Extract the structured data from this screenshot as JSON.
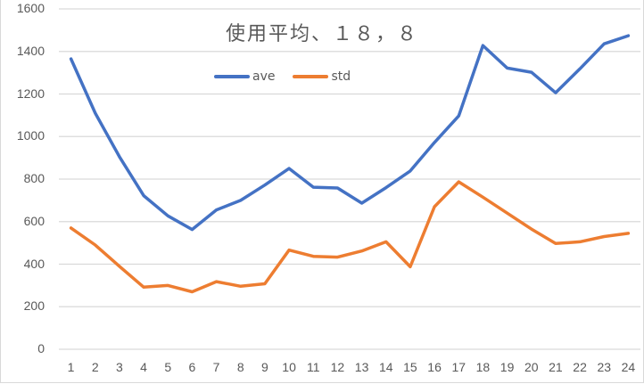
{
  "chart_data": {
    "type": "line",
    "title": "使用平均、１８，８",
    "xlabel": "",
    "ylabel": "",
    "categories": [
      "1",
      "2",
      "3",
      "4",
      "5",
      "6",
      "7",
      "8",
      "9",
      "10",
      "11",
      "12",
      "13",
      "14",
      "15",
      "16",
      "17",
      "18",
      "19",
      "20",
      "21",
      "22",
      "23",
      "24"
    ],
    "series": [
      {
        "name": "ave",
        "color": "#4472C4",
        "values": [
          1365,
          1110,
          905,
          722,
          627,
          563,
          655,
          700,
          772,
          850,
          762,
          758,
          687,
          760,
          838,
          972,
          1097,
          1428,
          1322,
          1302,
          1206,
          1318,
          1436,
          1474
        ]
      },
      {
        "name": "std",
        "color": "#ED7D31",
        "values": [
          570,
          490,
          390,
          292,
          300,
          270,
          318,
          296,
          308,
          466,
          437,
          433,
          462,
          505,
          388,
          670,
          787,
          715,
          640,
          565,
          497,
          505,
          530,
          545
        ]
      }
    ],
    "ylim": [
      0,
      1600
    ],
    "yticks": [
      "0",
      "200",
      "400",
      "600",
      "800",
      "1000",
      "1200",
      "1400",
      "1600"
    ],
    "grid": true,
    "legend_position": "top"
  },
  "legend": [
    {
      "label": "ave",
      "color": "#4472C4"
    },
    {
      "label": "std",
      "color": "#ED7D31"
    }
  ]
}
